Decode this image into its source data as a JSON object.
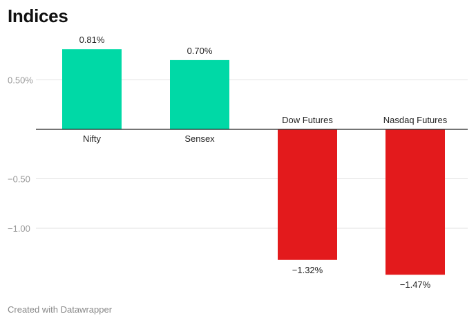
{
  "chart_data": {
    "type": "bar",
    "title": "Indices",
    "categories": [
      "Nifty",
      "Sensex",
      "Dow Futures",
      "Nasdaq Futures"
    ],
    "values": [
      0.81,
      0.7,
      -1.32,
      -1.47
    ],
    "value_labels": [
      "0.81%",
      "0.70%",
      "−1.32%",
      "−1.47%"
    ],
    "y_ticks": [
      {
        "value": 0.5,
        "label": "0.50%"
      },
      {
        "value": -0.5,
        "label": "−0.50"
      },
      {
        "value": -1.0,
        "label": "−1.00"
      }
    ],
    "ylim": [
      -1.47,
      0.81
    ],
    "xlabel": "",
    "ylabel": "",
    "grid": true,
    "colors": {
      "positive": "#00d9a6",
      "negative": "#e31a1c",
      "grid": "#e2e2e2",
      "zero_line": "#222222",
      "tick_text": "#9a9a9a"
    }
  },
  "footer": {
    "credit": "Created with Datawrapper"
  }
}
